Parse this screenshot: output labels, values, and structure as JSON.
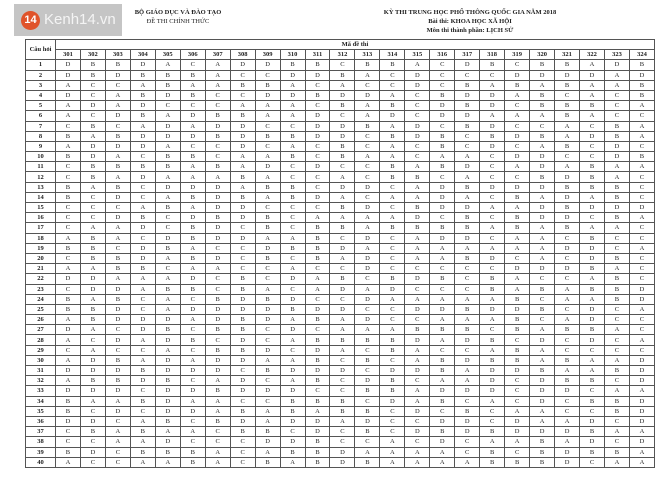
{
  "watermark": {
    "badge": "14",
    "text": "Kenh14.vn",
    "accent": "#e0532a"
  },
  "header": {
    "ministry": "BỘ GIÁO DỤC VÀ ĐÀO TẠO",
    "official": "ĐỀ THI CHÍNH THỨC",
    "exam_title": "KỲ THI TRUNG HỌC PHỔ THÔNG QUỐC GIA NĂM 2018",
    "test": "Bài thi: KHOA HỌC XÃ HỘI",
    "subject": "Môn thi thành phần: LỊCH SỬ"
  },
  "table": {
    "question_header": "Câu hỏi",
    "code_header": "Mã đề thi",
    "codes": [
      "301",
      "302",
      "303",
      "304",
      "305",
      "306",
      "307",
      "308",
      "309",
      "310",
      "311",
      "312",
      "313",
      "314",
      "315",
      "316",
      "317",
      "318",
      "319",
      "320",
      "321",
      "322",
      "323",
      "324"
    ],
    "rows": [
      {
        "q": "1",
        "a": [
          "D",
          "B",
          "B",
          "D",
          "A",
          "C",
          "A",
          "D",
          "D",
          "B",
          "B",
          "C",
          "B",
          "B",
          "A",
          "C",
          "D",
          "B",
          "C",
          "B",
          "B",
          "A",
          "D",
          "B"
        ]
      },
      {
        "q": "2",
        "a": [
          "D",
          "B",
          "D",
          "B",
          "B",
          "B",
          "A",
          "C",
          "C",
          "D",
          "D",
          "B",
          "A",
          "C",
          "D",
          "C",
          "C",
          "C",
          "D",
          "D",
          "D",
          "D",
          "A",
          "D"
        ]
      },
      {
        "q": "3",
        "a": [
          "A",
          "C",
          "C",
          "A",
          "B",
          "A",
          "A",
          "B",
          "B",
          "A",
          "C",
          "A",
          "C",
          "C",
          "D",
          "C",
          "B",
          "A",
          "B",
          "A",
          "B",
          "A",
          "A",
          "B"
        ]
      },
      {
        "q": "4",
        "a": [
          "D",
          "C",
          "A",
          "B",
          "D",
          "B",
          "C",
          "C",
          "D",
          "D",
          "B",
          "D",
          "D",
          "A",
          "C",
          "B",
          "D",
          "D",
          "A",
          "B",
          "C",
          "A",
          "C",
          "B"
        ]
      },
      {
        "q": "5",
        "a": [
          "A",
          "D",
          "A",
          "D",
          "C",
          "C",
          "C",
          "A",
          "A",
          "A",
          "C",
          "B",
          "A",
          "B",
          "C",
          "D",
          "B",
          "D",
          "C",
          "B",
          "B",
          "B",
          "C",
          "A"
        ]
      },
      {
        "q": "6",
        "a": [
          "A",
          "C",
          "D",
          "B",
          "A",
          "D",
          "B",
          "B",
          "A",
          "A",
          "D",
          "C",
          "A",
          "D",
          "C",
          "D",
          "D",
          "A",
          "A",
          "A",
          "B",
          "A",
          "C",
          "C"
        ]
      },
      {
        "q": "7",
        "a": [
          "C",
          "B",
          "C",
          "A",
          "D",
          "A",
          "D",
          "D",
          "C",
          "C",
          "D",
          "D",
          "B",
          "A",
          "D",
          "C",
          "B",
          "D",
          "C",
          "C",
          "A",
          "C",
          "B",
          "A"
        ]
      },
      {
        "q": "8",
        "a": [
          "B",
          "A",
          "B",
          "D",
          "D",
          "D",
          "B",
          "D",
          "B",
          "B",
          "D",
          "D",
          "C",
          "B",
          "D",
          "B",
          "C",
          "B",
          "D",
          "B",
          "A",
          "D",
          "B",
          "A"
        ]
      },
      {
        "q": "9",
        "a": [
          "A",
          "D",
          "D",
          "D",
          "A",
          "C",
          "C",
          "D",
          "C",
          "A",
          "C",
          "B",
          "C",
          "A",
          "C",
          "B",
          "C",
          "D",
          "C",
          "A",
          "B",
          "C",
          "D",
          "C"
        ]
      },
      {
        "q": "10",
        "a": [
          "B",
          "D",
          "A",
          "C",
          "B",
          "B",
          "C",
          "A",
          "A",
          "B",
          "C",
          "B",
          "A",
          "A",
          "C",
          "A",
          "A",
          "C",
          "D",
          "D",
          "C",
          "C",
          "D",
          "B"
        ]
      },
      {
        "q": "11",
        "a": [
          "C",
          "B",
          "B",
          "B",
          "B",
          "A",
          "B",
          "A",
          "D",
          "C",
          "D",
          "C",
          "C",
          "B",
          "A",
          "B",
          "D",
          "C",
          "A",
          "D",
          "A",
          "B",
          "A",
          "A"
        ]
      },
      {
        "q": "12",
        "a": [
          "C",
          "B",
          "A",
          "D",
          "A",
          "A",
          "A",
          "B",
          "A",
          "C",
          "C",
          "A",
          "C",
          "B",
          "B",
          "C",
          "A",
          "C",
          "C",
          "B",
          "D",
          "B",
          "A",
          "C"
        ]
      },
      {
        "q": "13",
        "a": [
          "B",
          "A",
          "B",
          "C",
          "D",
          "D",
          "D",
          "A",
          "B",
          "B",
          "C",
          "D",
          "D",
          "C",
          "A",
          "D",
          "B",
          "D",
          "D",
          "D",
          "B",
          "B",
          "B",
          "C"
        ]
      },
      {
        "q": "14",
        "a": [
          "B",
          "C",
          "D",
          "C",
          "A",
          "B",
          "D",
          "B",
          "A",
          "B",
          "D",
          "A",
          "C",
          "A",
          "A",
          "D",
          "A",
          "C",
          "B",
          "A",
          "D",
          "A",
          "B",
          "C"
        ]
      },
      {
        "q": "15",
        "a": [
          "C",
          "C",
          "C",
          "A",
          "B",
          "A",
          "D",
          "D",
          "C",
          "C",
          "C",
          "B",
          "D",
          "C",
          "B",
          "D",
          "D",
          "A",
          "A",
          "D",
          "B",
          "D",
          "D",
          "D"
        ]
      },
      {
        "q": "16",
        "a": [
          "C",
          "C",
          "D",
          "B",
          "C",
          "D",
          "B",
          "D",
          "B",
          "C",
          "A",
          "A",
          "A",
          "A",
          "D",
          "C",
          "B",
          "C",
          "B",
          "D",
          "D",
          "C",
          "B",
          "A"
        ]
      },
      {
        "q": "17",
        "a": [
          "C",
          "A",
          "A",
          "D",
          "C",
          "B",
          "D",
          "C",
          "B",
          "C",
          "B",
          "B",
          "A",
          "B",
          "B",
          "B",
          "B",
          "A",
          "B",
          "A",
          "B",
          "A",
          "A",
          "C"
        ]
      },
      {
        "q": "18",
        "a": [
          "A",
          "B",
          "A",
          "C",
          "D",
          "B",
          "D",
          "D",
          "A",
          "A",
          "B",
          "C",
          "D",
          "C",
          "A",
          "D",
          "D",
          "C",
          "A",
          "A",
          "C",
          "B",
          "C",
          "C"
        ]
      },
      {
        "q": "19",
        "a": [
          "B",
          "B",
          "C",
          "D",
          "B",
          "A",
          "C",
          "C",
          "D",
          "B",
          "B",
          "D",
          "A",
          "C",
          "A",
          "A",
          "A",
          "A",
          "A",
          "A",
          "D",
          "D",
          "C",
          "A"
        ]
      },
      {
        "q": "20",
        "a": [
          "C",
          "B",
          "B",
          "D",
          "A",
          "B",
          "D",
          "C",
          "B",
          "C",
          "B",
          "A",
          "D",
          "C",
          "A",
          "A",
          "B",
          "D",
          "C",
          "A",
          "C",
          "D",
          "B",
          "C"
        ]
      },
      {
        "q": "21",
        "a": [
          "A",
          "A",
          "B",
          "B",
          "C",
          "A",
          "A",
          "C",
          "C",
          "A",
          "C",
          "C",
          "D",
          "C",
          "C",
          "C",
          "C",
          "C",
          "D",
          "D",
          "D",
          "B",
          "A",
          "C"
        ]
      },
      {
        "q": "22",
        "a": [
          "D",
          "D",
          "A",
          "A",
          "A",
          "D",
          "C",
          "B",
          "C",
          "D",
          "A",
          "B",
          "C",
          "B",
          "D",
          "B",
          "C",
          "B",
          "A",
          "C",
          "C",
          "A",
          "B",
          "C"
        ]
      },
      {
        "q": "23",
        "a": [
          "C",
          "D",
          "D",
          "A",
          "B",
          "B",
          "C",
          "B",
          "A",
          "C",
          "A",
          "D",
          "A",
          "D",
          "C",
          "C",
          "C",
          "B",
          "A",
          "B",
          "A",
          "B",
          "B",
          "D"
        ]
      },
      {
        "q": "24",
        "a": [
          "B",
          "A",
          "B",
          "C",
          "A",
          "C",
          "B",
          "D",
          "B",
          "D",
          "C",
          "C",
          "D",
          "A",
          "A",
          "A",
          "A",
          "A",
          "B",
          "C",
          "A",
          "A",
          "B",
          "D"
        ]
      },
      {
        "q": "25",
        "a": [
          "B",
          "B",
          "D",
          "C",
          "A",
          "D",
          "D",
          "D",
          "D",
          "B",
          "D",
          "D",
          "C",
          "C",
          "D",
          "D",
          "B",
          "D",
          "D",
          "B",
          "C",
          "D",
          "C",
          "A"
        ]
      },
      {
        "q": "26",
        "a": [
          "A",
          "B",
          "D",
          "D",
          "D",
          "A",
          "D",
          "B",
          "D",
          "A",
          "B",
          "A",
          "D",
          "C",
          "C",
          "A",
          "A",
          "A",
          "B",
          "C",
          "A",
          "D",
          "C",
          "C"
        ]
      },
      {
        "q": "27",
        "a": [
          "D",
          "A",
          "C",
          "D",
          "B",
          "C",
          "B",
          "B",
          "C",
          "D",
          "C",
          "A",
          "A",
          "A",
          "B",
          "B",
          "B",
          "C",
          "B",
          "A",
          "B",
          "B",
          "A",
          "C"
        ]
      },
      {
        "q": "28",
        "a": [
          "A",
          "C",
          "D",
          "A",
          "D",
          "B",
          "C",
          "D",
          "C",
          "A",
          "B",
          "B",
          "B",
          "B",
          "D",
          "A",
          "D",
          "B",
          "C",
          "D",
          "C",
          "D",
          "C",
          "A"
        ]
      },
      {
        "q": "29",
        "a": [
          "C",
          "A",
          "C",
          "C",
          "A",
          "C",
          "B",
          "B",
          "D",
          "C",
          "D",
          "A",
          "C",
          "B",
          "A",
          "C",
          "C",
          "A",
          "B",
          "A",
          "C",
          "C",
          "C",
          "C"
        ]
      },
      {
        "q": "30",
        "a": [
          "A",
          "D",
          "B",
          "A",
          "D",
          "A",
          "D",
          "D",
          "A",
          "A",
          "B",
          "C",
          "B",
          "C",
          "A",
          "B",
          "D",
          "B",
          "B",
          "A",
          "B",
          "A",
          "A",
          "D"
        ]
      },
      {
        "q": "31",
        "a": [
          "D",
          "D",
          "D",
          "B",
          "D",
          "D",
          "D",
          "C",
          "B",
          "D",
          "D",
          "D",
          "C",
          "D",
          "D",
          "B",
          "A",
          "D",
          "D",
          "B",
          "A",
          "A",
          "B",
          "D"
        ]
      },
      {
        "q": "32",
        "a": [
          "A",
          "B",
          "B",
          "D",
          "B",
          "C",
          "A",
          "D",
          "C",
          "A",
          "B",
          "C",
          "D",
          "B",
          "C",
          "A",
          "A",
          "D",
          "C",
          "D",
          "B",
          "B",
          "C",
          "D"
        ]
      },
      {
        "q": "33",
        "a": [
          "D",
          "D",
          "D",
          "C",
          "D",
          "D",
          "B",
          "D",
          "D",
          "D",
          "C",
          "C",
          "B",
          "B",
          "A",
          "D",
          "D",
          "D",
          "C",
          "D",
          "D",
          "C",
          "A",
          "A"
        ]
      },
      {
        "q": "34",
        "a": [
          "B",
          "A",
          "A",
          "B",
          "D",
          "A",
          "A",
          "C",
          "C",
          "B",
          "B",
          "B",
          "C",
          "D",
          "A",
          "B",
          "C",
          "A",
          "C",
          "D",
          "C",
          "B",
          "B",
          "D"
        ]
      },
      {
        "q": "35",
        "a": [
          "B",
          "C",
          "D",
          "C",
          "D",
          "D",
          "A",
          "B",
          "A",
          "B",
          "A",
          "B",
          "B",
          "C",
          "D",
          "C",
          "B",
          "C",
          "A",
          "A",
          "C",
          "C",
          "B",
          "D"
        ]
      },
      {
        "q": "36",
        "a": [
          "D",
          "D",
          "C",
          "A",
          "B",
          "C",
          "B",
          "D",
          "A",
          "D",
          "D",
          "A",
          "D",
          "C",
          "C",
          "D",
          "D",
          "C",
          "D",
          "A",
          "A",
          "D",
          "C",
          "D"
        ]
      },
      {
        "q": "37",
        "a": [
          "C",
          "B",
          "A",
          "B",
          "A",
          "A",
          "C",
          "B",
          "B",
          "C",
          "D",
          "C",
          "B",
          "C",
          "D",
          "B",
          "D",
          "B",
          "D",
          "D",
          "D",
          "B",
          "A",
          "A"
        ]
      },
      {
        "q": "38",
        "a": [
          "C",
          "C",
          "A",
          "A",
          "D",
          "C",
          "C",
          "C",
          "D",
          "D",
          "B",
          "C",
          "C",
          "A",
          "C",
          "D",
          "C",
          "A",
          "A",
          "B",
          "A",
          "D",
          "C",
          "D"
        ]
      },
      {
        "q": "39",
        "a": [
          "B",
          "D",
          "C",
          "B",
          "B",
          "B",
          "A",
          "C",
          "A",
          "B",
          "B",
          "D",
          "A",
          "A",
          "A",
          "A",
          "C",
          "B",
          "C",
          "B",
          "D",
          "B",
          "B",
          "A"
        ]
      },
      {
        "q": "40",
        "a": [
          "A",
          "C",
          "C",
          "A",
          "A",
          "B",
          "A",
          "C",
          "B",
          "A",
          "B",
          "D",
          "B",
          "A",
          "A",
          "A",
          "A",
          "B",
          "B",
          "B",
          "D",
          "C",
          "A",
          "A"
        ]
      }
    ]
  }
}
